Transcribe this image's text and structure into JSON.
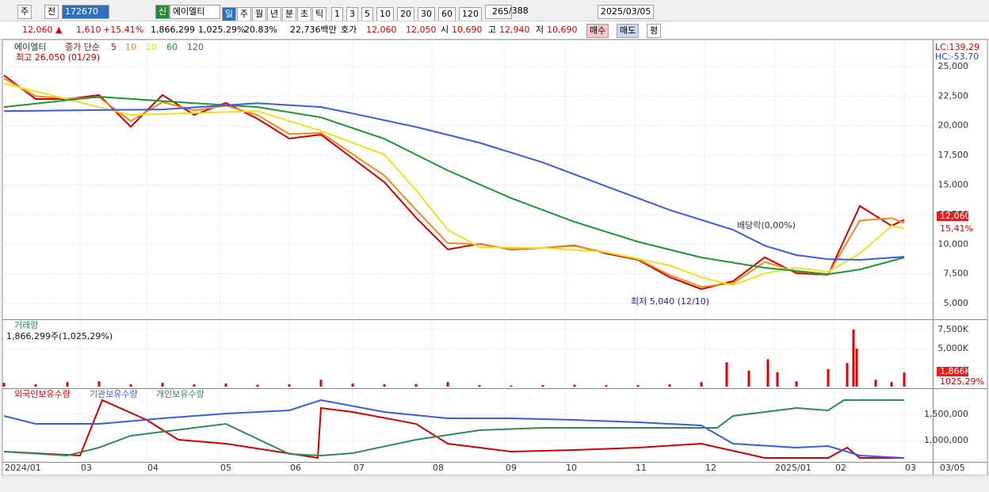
{
  "toolbar": {
    "period": "주",
    "prev": "전",
    "code": "172670",
    "new": "신",
    "name": "에이엘티",
    "periods": [
      "일",
      "주",
      "월",
      "년",
      "분",
      "초",
      "틱"
    ],
    "intervals": [
      "1",
      "3",
      "5",
      "10",
      "20",
      "30",
      "60",
      "120"
    ],
    "count": "265",
    "total": "/388",
    "date": "2025/03/05"
  },
  "quote": {
    "price": "12,060 ▲",
    "change": "1,610",
    "rate": "+15.41%",
    "volume": "1,866,299",
    "volume_rate": "1,025.29%",
    "turnover": "20.83%",
    "amount": "22,736백만",
    "ask_label": "호가",
    "ask": "12,060",
    "bid": "12,050",
    "open_label": "시",
    "open": "10,690",
    "high_label": "고",
    "high": "12,940",
    "low_label": "저",
    "low": "10,690",
    "buy": "매수",
    "sell": "매도",
    "avg": "평"
  },
  "chart_data": [
    {
      "type": "line",
      "title": "에이엘티",
      "subtitle": "종가 단순",
      "series": [
        {
          "name": "5",
          "color": "#d40000",
          "x": [
            0,
            1,
            2,
            3,
            4,
            5,
            6,
            7,
            8,
            9,
            10,
            11,
            12,
            13,
            14,
            15,
            16,
            17,
            18,
            19,
            20,
            21,
            22,
            23,
            24,
            25,
            26,
            27,
            28,
            28.4
          ],
          "values": [
            24260,
            22260,
            22260,
            22600,
            19920,
            22600,
            20920,
            21930,
            20590,
            18920,
            19250,
            17250,
            15240,
            12240,
            9560,
            10030,
            9560,
            9690,
            9890,
            9220,
            8690,
            7220,
            6210,
            6880,
            8890,
            7550,
            7420,
            13230,
            11560,
            12060
          ]
        },
        {
          "name": "10",
          "color": "#f08c1e",
          "x": [
            0,
            1,
            2,
            3,
            4,
            5,
            6,
            7,
            8,
            9,
            10,
            11,
            12,
            13,
            14,
            15,
            16,
            17,
            18,
            19,
            20,
            21,
            22,
            23,
            24,
            25,
            26,
            27,
            28,
            28.4
          ],
          "values": [
            24000,
            22500,
            22300,
            22400,
            20400,
            22000,
            21300,
            21700,
            20900,
            19300,
            19400,
            17600,
            15800,
            12900,
            10100,
            10000,
            9600,
            9700,
            9850,
            9300,
            8750,
            7400,
            6400,
            6700,
            8500,
            7700,
            7450,
            12000,
            12200,
            11800
          ]
        },
        {
          "name": "20",
          "color": "#f0e020",
          "x": [
            0,
            4,
            8,
            10,
            12,
            13,
            14,
            15,
            17,
            19,
            21,
            22,
            23,
            24,
            25,
            26,
            27,
            28,
            28.4
          ],
          "values": [
            23580,
            20910,
            21240,
            19570,
            17570,
            14560,
            11220,
            9750,
            9690,
            9340,
            8210,
            7210,
            6540,
            7540,
            8010,
            7670,
            9210,
            11550,
            11350
          ]
        },
        {
          "name": "60",
          "color": "#1e9632",
          "x": [
            0,
            3,
            6,
            8,
            10,
            12,
            14,
            16,
            18,
            20,
            22,
            24,
            26,
            27,
            28.4
          ],
          "values": [
            21580,
            22450,
            21910,
            21580,
            20710,
            18900,
            16230,
            13890,
            11890,
            10210,
            8880,
            8010,
            7470,
            7870,
            8880
          ]
        },
        {
          "name": "120",
          "color": "#3c5ae6",
          "x": [
            0,
            5,
            8,
            10,
            11,
            13,
            15,
            17,
            19,
            21,
            23,
            24,
            25,
            26,
            27,
            28.4
          ],
          "values": [
            21240,
            21380,
            21910,
            21580,
            21040,
            19900,
            18570,
            16900,
            14890,
            12890,
            11220,
            9880,
            9080,
            8740,
            8680,
            8940
          ]
        }
      ],
      "ylim": [
        3730,
        27140
      ],
      "yticks": [
        {
          "value": 5000,
          "label": "5,000"
        },
        {
          "value": 7500,
          "label": "7,500"
        },
        {
          "value": 10000,
          "label": "10,000"
        },
        {
          "value": 12500,
          "label": "12,500"
        },
        {
          "value": 15000,
          "label": "15,000"
        },
        {
          "value": 17500,
          "label": "17,500"
        },
        {
          "value": 20000,
          "label": "20,000"
        },
        {
          "value": 22500,
          "label": "22,500"
        },
        {
          "value": 25000,
          "label": "25,000"
        }
      ],
      "annotations": {
        "high": "최고 26,050 (01/29)",
        "low": "최저 5,040 (12/10)",
        "ex_dividend": "배당락(0,00%)",
        "lc": "LC:139,29",
        "hc": "HC:-53,70",
        "last_price": "12,060",
        "last_rate": "15,41%"
      }
    },
    {
      "type": "bar",
      "title": "거래량",
      "subtitle": "1,866,299주(1,025,29%)",
      "color": "#e00000",
      "x": [
        0,
        1,
        2,
        3,
        4,
        5,
        6,
        7,
        8,
        9,
        10,
        11,
        12,
        13,
        14,
        15,
        16,
        17,
        18,
        19,
        20,
        21,
        22,
        22.8,
        23.5,
        24.1,
        24.4,
        25,
        26,
        26.6,
        26.8,
        26.9,
        27.5,
        28,
        28.4
      ],
      "values": [
        500,
        300,
        600,
        700,
        300,
        500,
        300,
        400,
        250,
        300,
        900,
        400,
        300,
        350,
        600,
        200,
        150,
        200,
        250,
        200,
        200,
        300,
        600,
        3200,
        2100,
        3600,
        1900,
        700,
        2300,
        3100,
        7500,
        5000,
        900,
        600,
        1866
      ],
      "ylim": [
        0,
        8650
      ],
      "yticks": [
        {
          "value": 5000,
          "label": "5,000K"
        },
        {
          "value": 7500,
          "label": "7,500K"
        }
      ],
      "annotations": {
        "last_label": "1,866K",
        "last_rate": "1025,29%"
      }
    },
    {
      "type": "line",
      "series": [
        {
          "name": "외국인보유수량",
          "color": "#d40000",
          "x": [
            0,
            2.4,
            3.1,
            4.5,
            5.5,
            7,
            9.9,
            10,
            11,
            13,
            14,
            16,
            18,
            20,
            22,
            24,
            26,
            26.6,
            27,
            28.4
          ],
          "values": [
            788000,
            712000,
            1773000,
            1394000,
            1015000,
            939000,
            667000,
            1621000,
            1545000,
            1318000,
            939000,
            788000,
            818000,
            864000,
            939000,
            667000,
            667000,
            864000,
            667000,
            667000
          ]
        },
        {
          "name": "기관보유수량",
          "color": "#3c5ae6",
          "x": [
            0,
            1,
            3,
            5,
            7,
            9,
            10,
            12,
            14,
            16,
            18,
            20,
            22,
            23,
            25,
            26,
            27,
            28.4
          ],
          "values": [
            1470000,
            1318000,
            1318000,
            1424000,
            1515000,
            1576000,
            1773000,
            1545000,
            1424000,
            1424000,
            1394000,
            1348000,
            1288000,
            939000,
            864000,
            894000,
            712000,
            667000
          ]
        },
        {
          "name": "개인보유수량",
          "color": "#2e8b57",
          "x": [
            0,
            2,
            3,
            4,
            5,
            7,
            9,
            10,
            11,
            13,
            15,
            17,
            19,
            21,
            22.5,
            23,
            24,
            25,
            26,
            26.5,
            27,
            28.4
          ],
          "values": [
            788000,
            712000,
            864000,
            1091000,
            1167000,
            1318000,
            742000,
            712000,
            758000,
            1015000,
            1197000,
            1242000,
            1242000,
            1242000,
            1242000,
            1470000,
            1545000,
            1621000,
            1576000,
            1773000,
            1773000,
            1773000
          ]
        }
      ],
      "ylim": [
        606000,
        1970000
      ],
      "yticks": [
        {
          "value": 1000000,
          "label": "1,000,000"
        },
        {
          "value": 1500000,
          "label": "1,500,000"
        }
      ],
      "xlim": [
        0,
        29.25
      ],
      "xticks": [
        {
          "value": 0,
          "label": "2024/01"
        },
        {
          "value": 2.4,
          "label": "03"
        },
        {
          "value": 4.5,
          "label": "04"
        },
        {
          "value": 6.8,
          "label": "05"
        },
        {
          "value": 9.0,
          "label": "06"
        },
        {
          "value": 11.0,
          "label": "07"
        },
        {
          "value": 13.5,
          "label": "08"
        },
        {
          "value": 15.8,
          "label": "09"
        },
        {
          "value": 17.7,
          "label": "10"
        },
        {
          "value": 19.9,
          "label": "11"
        },
        {
          "value": 22.1,
          "label": "12"
        },
        {
          "value": 24.3,
          "label": "2025/01"
        },
        {
          "value": 26.2,
          "label": "02"
        },
        {
          "value": 28.4,
          "label": "03"
        }
      ],
      "end_label": "03/05"
    }
  ]
}
